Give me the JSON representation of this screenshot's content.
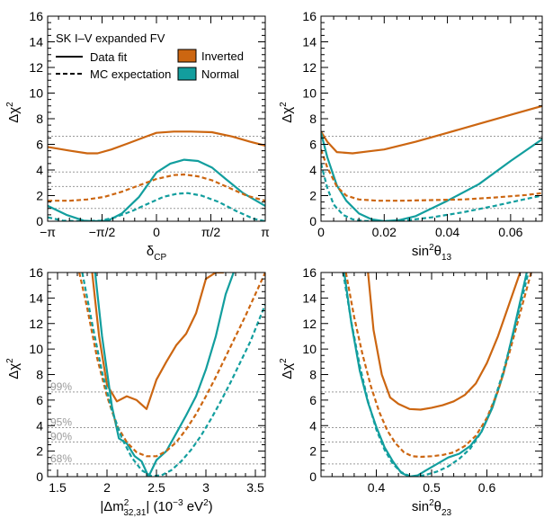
{
  "colors": {
    "inverted": "#cc6611",
    "normal": "#129e9e",
    "cl_line": "#9a9a9a",
    "axis": "#000000"
  },
  "legend": {
    "title": "SK I–V expanded FV",
    "data_fit": "Data  fit",
    "mc_expectation": "MC expectation",
    "inverted": "Inverted",
    "normal": "Normal"
  },
  "cl_levels": [
    {
      "label": "68%",
      "value": 1.0
    },
    {
      "label": "90%",
      "value": 2.71
    },
    {
      "label": "95%",
      "value": 3.84
    },
    {
      "label": "99%",
      "value": 6.63
    }
  ],
  "chart_data": [
    {
      "type": "line",
      "id": "dcp",
      "ylabel": "Δχ",
      "ylabel_sup": "2",
      "xlabel": "δ",
      "xlabel_sub": "CP",
      "xlim": [
        -3.14159,
        3.14159
      ],
      "ylim": [
        0,
        16
      ],
      "x_ticks": [
        -3.14159,
        -1.5708,
        0,
        1.5708,
        3.14159
      ],
      "x_tick_labels": [
        "−π",
        "−π/2",
        "0",
        "π/2",
        "π"
      ],
      "y_ticks": [
        0,
        2,
        4,
        6,
        8,
        10,
        12,
        14,
        16
      ],
      "y_tick_labels": [
        "0",
        "2",
        "4",
        "6",
        "8",
        "10",
        "12",
        "14",
        "16"
      ],
      "show_cl_labels": false,
      "series": [
        {
          "name": "Inverted data",
          "color": "inverted",
          "dashed": false,
          "x": [
            -3.14,
            -2.5,
            -2.0,
            -1.7,
            -1.3,
            -0.8,
            -0.3,
            0.0,
            0.5,
            1.0,
            1.6,
            2.2,
            2.7,
            3.14
          ],
          "y": [
            5.8,
            5.5,
            5.3,
            5.3,
            5.6,
            6.1,
            6.6,
            6.9,
            7.0,
            7.0,
            6.95,
            6.6,
            6.2,
            5.9
          ]
        },
        {
          "name": "Normal data",
          "color": "normal",
          "dashed": false,
          "x": [
            -3.14,
            -2.6,
            -2.1,
            -1.8,
            -1.4,
            -1.0,
            -0.5,
            0.0,
            0.4,
            0.8,
            1.2,
            1.6,
            2.0,
            2.5,
            3.14
          ],
          "y": [
            1.2,
            0.5,
            0.05,
            0.0,
            0.05,
            0.6,
            1.9,
            3.8,
            4.5,
            4.8,
            4.7,
            4.2,
            3.3,
            2.2,
            1.2
          ]
        },
        {
          "name": "Inverted MC",
          "color": "inverted",
          "dashed": true,
          "x": [
            -3.14,
            -2.5,
            -2.0,
            -1.5,
            -1.0,
            -0.5,
            0.0,
            0.5,
            0.8,
            1.2,
            1.6,
            2.1,
            2.6,
            3.14
          ],
          "y": [
            1.6,
            1.6,
            1.7,
            1.9,
            2.3,
            2.8,
            3.3,
            3.6,
            3.65,
            3.5,
            3.2,
            2.6,
            2.0,
            1.6
          ]
        },
        {
          "name": "Normal MC",
          "color": "normal",
          "dashed": true,
          "x": [
            -3.14,
            -2.7,
            -2.2,
            -1.6,
            -1.2,
            -0.7,
            -0.3,
            0.2,
            0.6,
            0.9,
            1.3,
            1.8,
            2.3,
            2.8,
            3.14
          ],
          "y": [
            0.3,
            0.05,
            0.0,
            0.05,
            0.3,
            0.8,
            1.3,
            1.9,
            2.15,
            2.2,
            2.0,
            1.5,
            0.8,
            0.2,
            0.0
          ]
        }
      ]
    },
    {
      "type": "line",
      "id": "s13",
      "ylabel": "Δχ",
      "ylabel_sup": "2",
      "xlabel": "sin",
      "xlabel_sup": "2",
      "xlabel_tail": "θ",
      "xlabel_sub": "13",
      "xlim": [
        0,
        0.07
      ],
      "ylim": [
        0,
        16
      ],
      "x_ticks": [
        0,
        0.02,
        0.04,
        0.06
      ],
      "x_tick_labels": [
        "0",
        "0.02",
        "0.04",
        "0.06"
      ],
      "y_ticks": [
        0,
        2,
        4,
        6,
        8,
        10,
        12,
        14,
        16
      ],
      "y_tick_labels": [
        "0",
        "2",
        "4",
        "6",
        "8",
        "10",
        "12",
        "14",
        "16"
      ],
      "show_cl_labels": false,
      "series": [
        {
          "name": "Inverted data",
          "color": "inverted",
          "dashed": false,
          "x": [
            0.0,
            0.002,
            0.005,
            0.01,
            0.015,
            0.02,
            0.03,
            0.04,
            0.05,
            0.06,
            0.07
          ],
          "y": [
            7.0,
            6.2,
            5.4,
            5.3,
            5.45,
            5.6,
            6.2,
            6.9,
            7.6,
            8.3,
            9.0
          ]
        },
        {
          "name": "Normal data",
          "color": "normal",
          "dashed": false,
          "x": [
            0.0,
            0.002,
            0.005,
            0.008,
            0.012,
            0.016,
            0.02,
            0.025,
            0.03,
            0.04,
            0.05,
            0.06,
            0.07
          ],
          "y": [
            6.9,
            5.0,
            2.8,
            1.6,
            0.6,
            0.15,
            0.0,
            0.1,
            0.4,
            1.6,
            2.9,
            4.7,
            6.4
          ]
        },
        {
          "name": "Inverted MC",
          "color": "inverted",
          "dashed": true,
          "x": [
            0.0,
            0.002,
            0.005,
            0.008,
            0.012,
            0.018,
            0.025,
            0.035,
            0.045,
            0.055,
            0.065,
            0.07
          ],
          "y": [
            5.6,
            4.2,
            2.7,
            2.0,
            1.7,
            1.6,
            1.6,
            1.65,
            1.7,
            1.85,
            2.05,
            2.2
          ]
        },
        {
          "name": "Normal MC",
          "color": "normal",
          "dashed": true,
          "x": [
            0.0,
            0.002,
            0.004,
            0.007,
            0.01,
            0.014,
            0.018,
            0.022,
            0.028,
            0.035,
            0.045,
            0.055,
            0.065,
            0.07
          ],
          "y": [
            4.5,
            2.6,
            1.3,
            0.5,
            0.15,
            0.02,
            0.0,
            0.02,
            0.1,
            0.3,
            0.7,
            1.2,
            1.75,
            2.0
          ]
        }
      ]
    },
    {
      "type": "line",
      "id": "dm2",
      "ylabel": "Δχ",
      "ylabel_sup": "2",
      "xlabel": "|Δm",
      "xlabel_sup": "2",
      "xlabel_sub": "32,31",
      "xlabel_tail": "| (10",
      "xlabel_sup2": "−3",
      "xlabel_tail2": " eV",
      "xlabel_sup3": "2",
      "xlabel_tail3": ")",
      "xlim": [
        1.4,
        3.6
      ],
      "ylim": [
        0,
        16
      ],
      "x_ticks": [
        1.5,
        2.0,
        2.5,
        3.0,
        3.5
      ],
      "x_tick_labels": [
        "1.5",
        "2",
        "2.5",
        "3",
        "3.5"
      ],
      "y_ticks": [
        0,
        2,
        4,
        6,
        8,
        10,
        12,
        14,
        16
      ],
      "y_tick_labels": [
        "0",
        "2",
        "4",
        "6",
        "8",
        "10",
        "12",
        "14",
        "16"
      ],
      "show_cl_labels": true,
      "series": [
        {
          "name": "Inverted data",
          "color": "inverted",
          "dashed": false,
          "x": [
            1.85,
            1.92,
            2.0,
            2.1,
            2.2,
            2.3,
            2.4,
            2.5,
            2.6,
            2.7,
            2.8,
            2.9,
            3.0,
            3.1,
            3.18
          ],
          "y": [
            16.0,
            11.0,
            7.2,
            5.9,
            6.3,
            6.0,
            5.3,
            7.6,
            9.0,
            10.3,
            11.2,
            12.8,
            15.5,
            16.0,
            16.0
          ]
        },
        {
          "name": "Normal data",
          "color": "normal",
          "dashed": false,
          "x": [
            1.88,
            1.95,
            2.05,
            2.12,
            2.2,
            2.28,
            2.35,
            2.42,
            2.5,
            2.6,
            2.7,
            2.8,
            2.9,
            3.0,
            3.1,
            3.2,
            3.28
          ],
          "y": [
            16.0,
            11.0,
            5.5,
            3.0,
            2.6,
            1.6,
            1.2,
            0.0,
            1.3,
            2.0,
            3.4,
            4.8,
            6.3,
            8.4,
            11.0,
            14.3,
            16.0
          ]
        },
        {
          "name": "Inverted MC",
          "color": "inverted",
          "dashed": true,
          "x": [
            1.72,
            1.8,
            1.9,
            2.0,
            2.1,
            2.2,
            2.3,
            2.4,
            2.5,
            2.6,
            2.7,
            2.8,
            2.9,
            3.0,
            3.1,
            3.2,
            3.3,
            3.4,
            3.5,
            3.6
          ],
          "y": [
            16.0,
            13.2,
            9.3,
            6.3,
            4.0,
            2.7,
            1.9,
            1.6,
            1.6,
            2.0,
            2.7,
            3.7,
            4.9,
            6.3,
            7.8,
            9.4,
            11.0,
            12.6,
            14.3,
            16.0
          ]
        },
        {
          "name": "Normal MC",
          "color": "normal",
          "dashed": true,
          "x": [
            1.75,
            1.85,
            1.95,
            2.05,
            2.15,
            2.25,
            2.35,
            2.45,
            2.55,
            2.65,
            2.75,
            2.85,
            2.95,
            3.05,
            3.15,
            3.25,
            3.35,
            3.45,
            3.6
          ],
          "y": [
            16.0,
            12.0,
            8.2,
            5.2,
            3.0,
            1.5,
            0.5,
            0.05,
            0.1,
            0.5,
            1.2,
            2.1,
            3.2,
            4.5,
            5.9,
            7.4,
            9.0,
            10.6,
            13.5
          ]
        }
      ]
    },
    {
      "type": "line",
      "id": "s23",
      "ylabel": "Δχ",
      "ylabel_sup": "2",
      "xlabel": "sin",
      "xlabel_sup": "2",
      "xlabel_tail": "θ",
      "xlabel_sub": "23",
      "xlim": [
        0.3,
        0.7
      ],
      "ylim": [
        0,
        16
      ],
      "x_ticks": [
        0.4,
        0.5,
        0.6
      ],
      "x_tick_labels": [
        "0.4",
        "0.5",
        "0.6"
      ],
      "y_ticks": [
        0,
        2,
        4,
        6,
        8,
        10,
        12,
        14,
        16
      ],
      "y_tick_labels": [
        "0",
        "2",
        "4",
        "6",
        "8",
        "10",
        "12",
        "14",
        "16"
      ],
      "show_cl_labels": false,
      "series": [
        {
          "name": "Inverted data",
          "color": "inverted",
          "dashed": false,
          "x": [
            0.385,
            0.395,
            0.41,
            0.425,
            0.44,
            0.46,
            0.48,
            0.5,
            0.52,
            0.54,
            0.56,
            0.58,
            0.6,
            0.62,
            0.64,
            0.66
          ],
          "y": [
            16.0,
            11.5,
            8.0,
            6.2,
            5.7,
            5.3,
            5.25,
            5.4,
            5.6,
            5.9,
            6.4,
            7.3,
            8.9,
            11.0,
            13.5,
            16.0
          ]
        },
        {
          "name": "Normal data",
          "color": "normal",
          "dashed": false,
          "x": [
            0.342,
            0.355,
            0.37,
            0.385,
            0.4,
            0.415,
            0.43,
            0.445,
            0.46,
            0.475,
            0.49,
            0.51,
            0.53,
            0.55,
            0.57,
            0.59,
            0.61,
            0.63,
            0.65,
            0.672
          ],
          "y": [
            16.0,
            12.0,
            8.3,
            5.8,
            3.9,
            2.3,
            1.2,
            0.3,
            0.0,
            0.1,
            0.5,
            1.0,
            1.5,
            1.8,
            2.4,
            3.5,
            5.4,
            8.1,
            11.8,
            16.0
          ]
        },
        {
          "name": "Inverted MC",
          "color": "inverted",
          "dashed": true,
          "x": [
            0.345,
            0.36,
            0.375,
            0.39,
            0.405,
            0.42,
            0.435,
            0.45,
            0.465,
            0.48,
            0.5,
            0.52,
            0.54,
            0.56,
            0.58,
            0.6,
            0.62,
            0.64,
            0.66,
            0.68
          ],
          "y": [
            16.0,
            12.5,
            9.6,
            7.1,
            5.1,
            3.6,
            2.6,
            1.9,
            1.6,
            1.55,
            1.6,
            1.7,
            1.9,
            2.4,
            3.2,
            4.6,
            6.7,
            9.6,
            12.8,
            16.0
          ]
        },
        {
          "name": "Normal MC",
          "color": "normal",
          "dashed": true,
          "x": [
            0.34,
            0.355,
            0.37,
            0.385,
            0.4,
            0.415,
            0.43,
            0.445,
            0.46,
            0.475,
            0.49,
            0.51,
            0.53,
            0.55,
            0.57,
            0.59,
            0.61,
            0.63,
            0.65,
            0.675
          ],
          "y": [
            16.0,
            12.1,
            8.7,
            5.9,
            3.7,
            2.1,
            1.0,
            0.35,
            0.05,
            0.0,
            0.15,
            0.4,
            0.8,
            1.4,
            2.2,
            3.5,
            5.5,
            8.3,
            11.6,
            16.0
          ]
        }
      ]
    }
  ]
}
